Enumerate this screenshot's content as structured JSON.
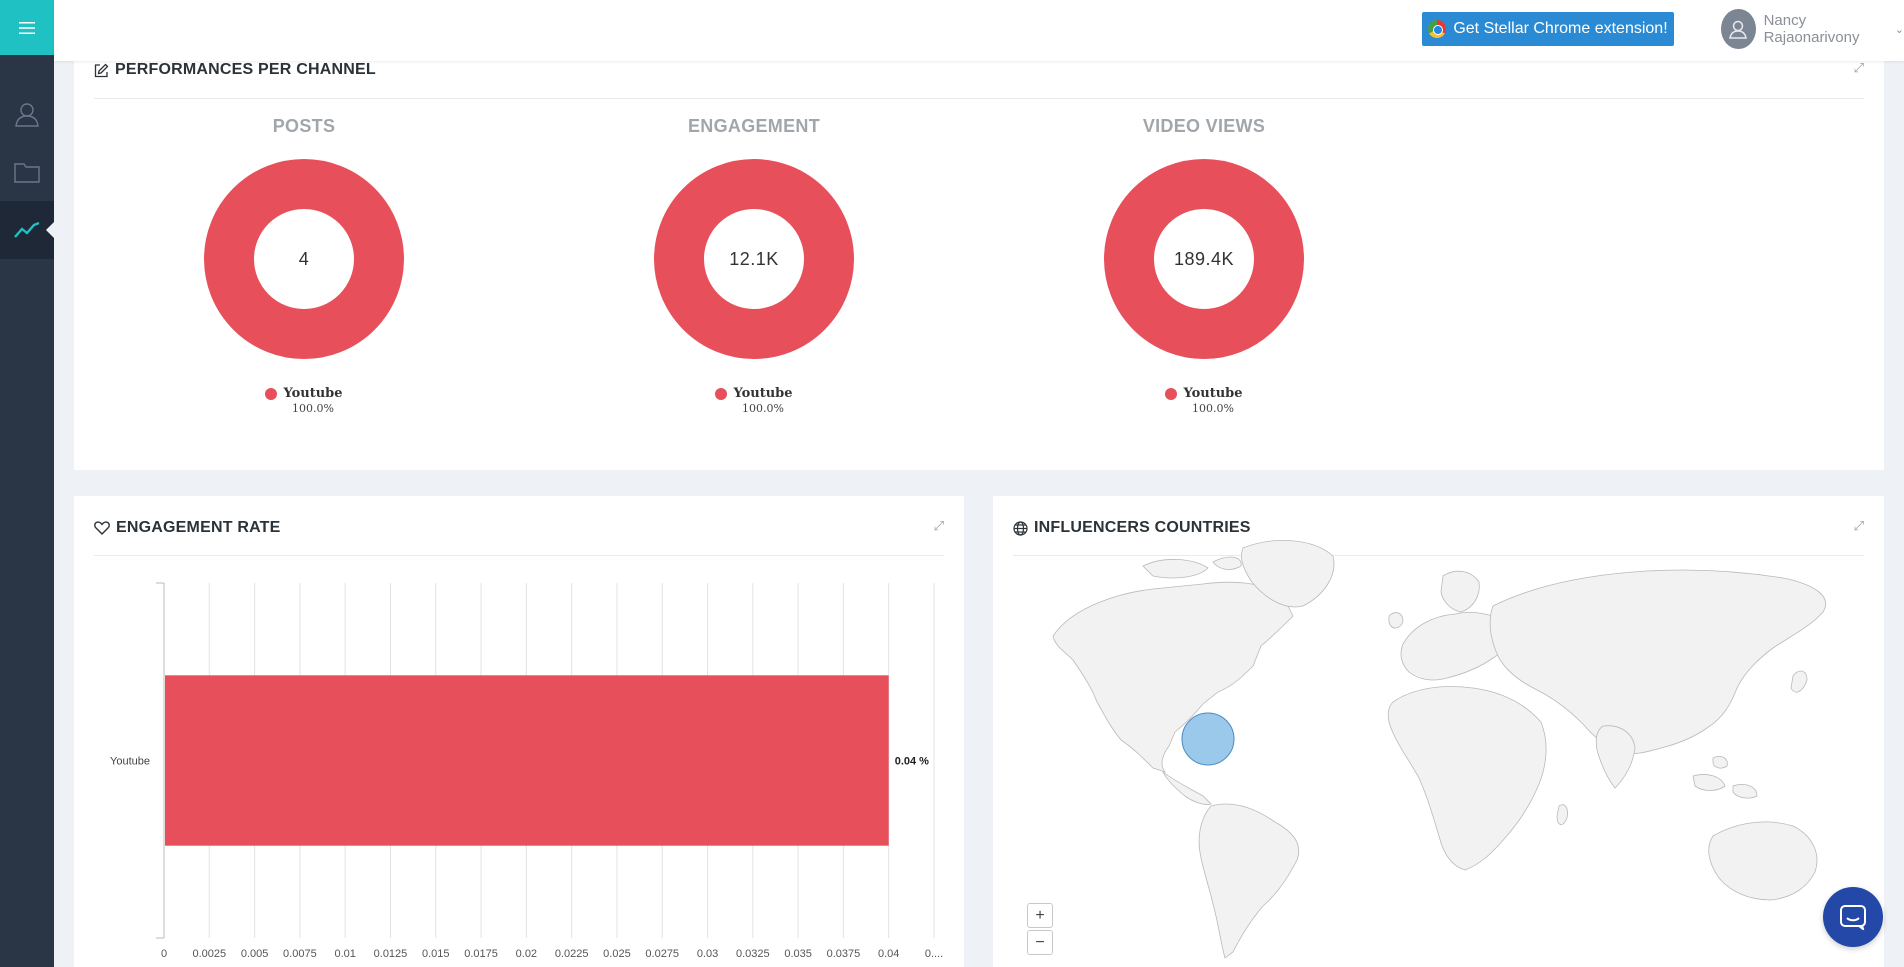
{
  "header": {
    "extension_button": "Get Stellar Chrome extension!",
    "user_name": "Nancy Rajaonarivony"
  },
  "sidebar": {
    "items": [
      {
        "icon": "user-icon",
        "active": false
      },
      {
        "icon": "folder-icon",
        "active": false
      },
      {
        "icon": "trend-chart-icon",
        "active": true
      }
    ]
  },
  "performances": {
    "title": "PERFORMANCES PER CHANNEL",
    "charts": [
      {
        "label": "POSTS",
        "center": "4",
        "legend": "Youtube",
        "pct": "100.0%"
      },
      {
        "label": "ENGAGEMENT",
        "center": "12.1K",
        "legend": "Youtube",
        "pct": "100.0%"
      },
      {
        "label": "VIDEO VIEWS",
        "center": "189.4K",
        "legend": "Youtube",
        "pct": "100.0%"
      }
    ]
  },
  "engagement_rate": {
    "title": "ENGAGEMENT RATE"
  },
  "countries": {
    "title": "INFLUENCERS COUNTRIES",
    "zoom_in": "+",
    "zoom_out": "−"
  },
  "chart_data": [
    {
      "type": "pie",
      "title": "POSTS",
      "labels": [
        "Youtube"
      ],
      "values": [
        4
      ],
      "colors": [
        "#e74f5b"
      ]
    },
    {
      "type": "pie",
      "title": "ENGAGEMENT",
      "labels": [
        "Youtube"
      ],
      "values": [
        12100
      ],
      "colors": [
        "#e74f5b"
      ]
    },
    {
      "type": "pie",
      "title": "VIDEO VIEWS",
      "labels": [
        "Youtube"
      ],
      "values": [
        189400
      ],
      "colors": [
        "#e74f5b"
      ]
    },
    {
      "type": "bar",
      "orientation": "horizontal",
      "title": "ENGAGEMENT RATE",
      "categories": [
        "Youtube"
      ],
      "values": [
        0.04
      ],
      "data_labels": [
        "0.04 %"
      ],
      "xlim": [
        0,
        0.0425
      ],
      "xticks": [
        "0",
        "0.0025",
        "0.005",
        "0.0075",
        "0.01",
        "0.0125",
        "0.015",
        "0.0175",
        "0.02",
        "0.0225",
        "0.025",
        "0.0275",
        "0.03",
        "0.0325",
        "0.035",
        "0.0375",
        "0.04",
        "0...."
      ],
      "grid": true,
      "color": "#e74f5b"
    }
  ],
  "colors": {
    "accent": "#1fc1c3",
    "sidebar": "#2a3546",
    "button": "#2a8ad3",
    "series": "#e74f5b",
    "map_bubble": "#8fc3ea"
  }
}
